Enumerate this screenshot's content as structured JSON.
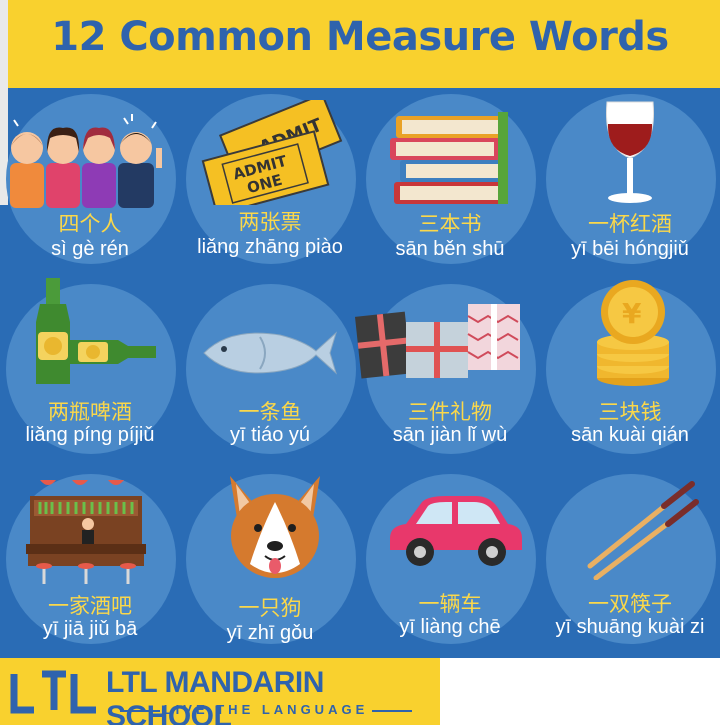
{
  "header": {
    "title": "12 Common Measure Words"
  },
  "items": [
    {
      "cn": "四个人",
      "py_parts": [
        [
          "sì ",
          0
        ],
        [
          "gè",
          1
        ],
        [
          " ",
          0
        ],
        [
          "rén",
          1
        ]
      ],
      "py": "sì gè rén",
      "icon": "people-group-icon"
    },
    {
      "cn": "两张票",
      "py": "liǎng zhāng piào",
      "icon": "tickets-icon"
    },
    {
      "cn": "三本书",
      "py": "sān běn shū",
      "icon": "books-stack-icon"
    },
    {
      "cn": "一杯红酒",
      "py": "yī bēi hóngjiǔ",
      "icon": "wine-glass-icon"
    },
    {
      "cn": "两瓶啤酒",
      "py": "liǎng píng píjiǔ",
      "icon": "beer-bottles-icon"
    },
    {
      "cn": "一条鱼",
      "py": "yī tiáo yú",
      "icon": "fish-icon"
    },
    {
      "cn": "三件礼物",
      "py": "sān jiàn lǐ wù",
      "icon": "gifts-icon"
    },
    {
      "cn": "三块钱",
      "py": "sān kuài qián",
      "icon": "coins-icon"
    },
    {
      "cn": "一家酒吧",
      "py": "yī jiā jiǔ bā",
      "icon": "bar-counter-icon"
    },
    {
      "cn": "一只狗",
      "py": "yī zhī gǒu",
      "icon": "dog-face-icon"
    },
    {
      "cn": "一辆车",
      "py": "yī liàng chē",
      "icon": "car-icon"
    },
    {
      "cn": "一双筷子",
      "py": "yī shuāng kuài zi",
      "icon": "chopsticks-icon"
    }
  ],
  "footer": {
    "brand": "LTL MANDARIN SCHOOL",
    "tagline": "LIVE THE LANGUAGE",
    "logo_letters": "LTL"
  },
  "colors": {
    "background": "#2a6cb5",
    "header": "#f9d12e",
    "title": "#2f63ad",
    "circle": "#4a89c8",
    "chinese": "#fbd84a"
  }
}
